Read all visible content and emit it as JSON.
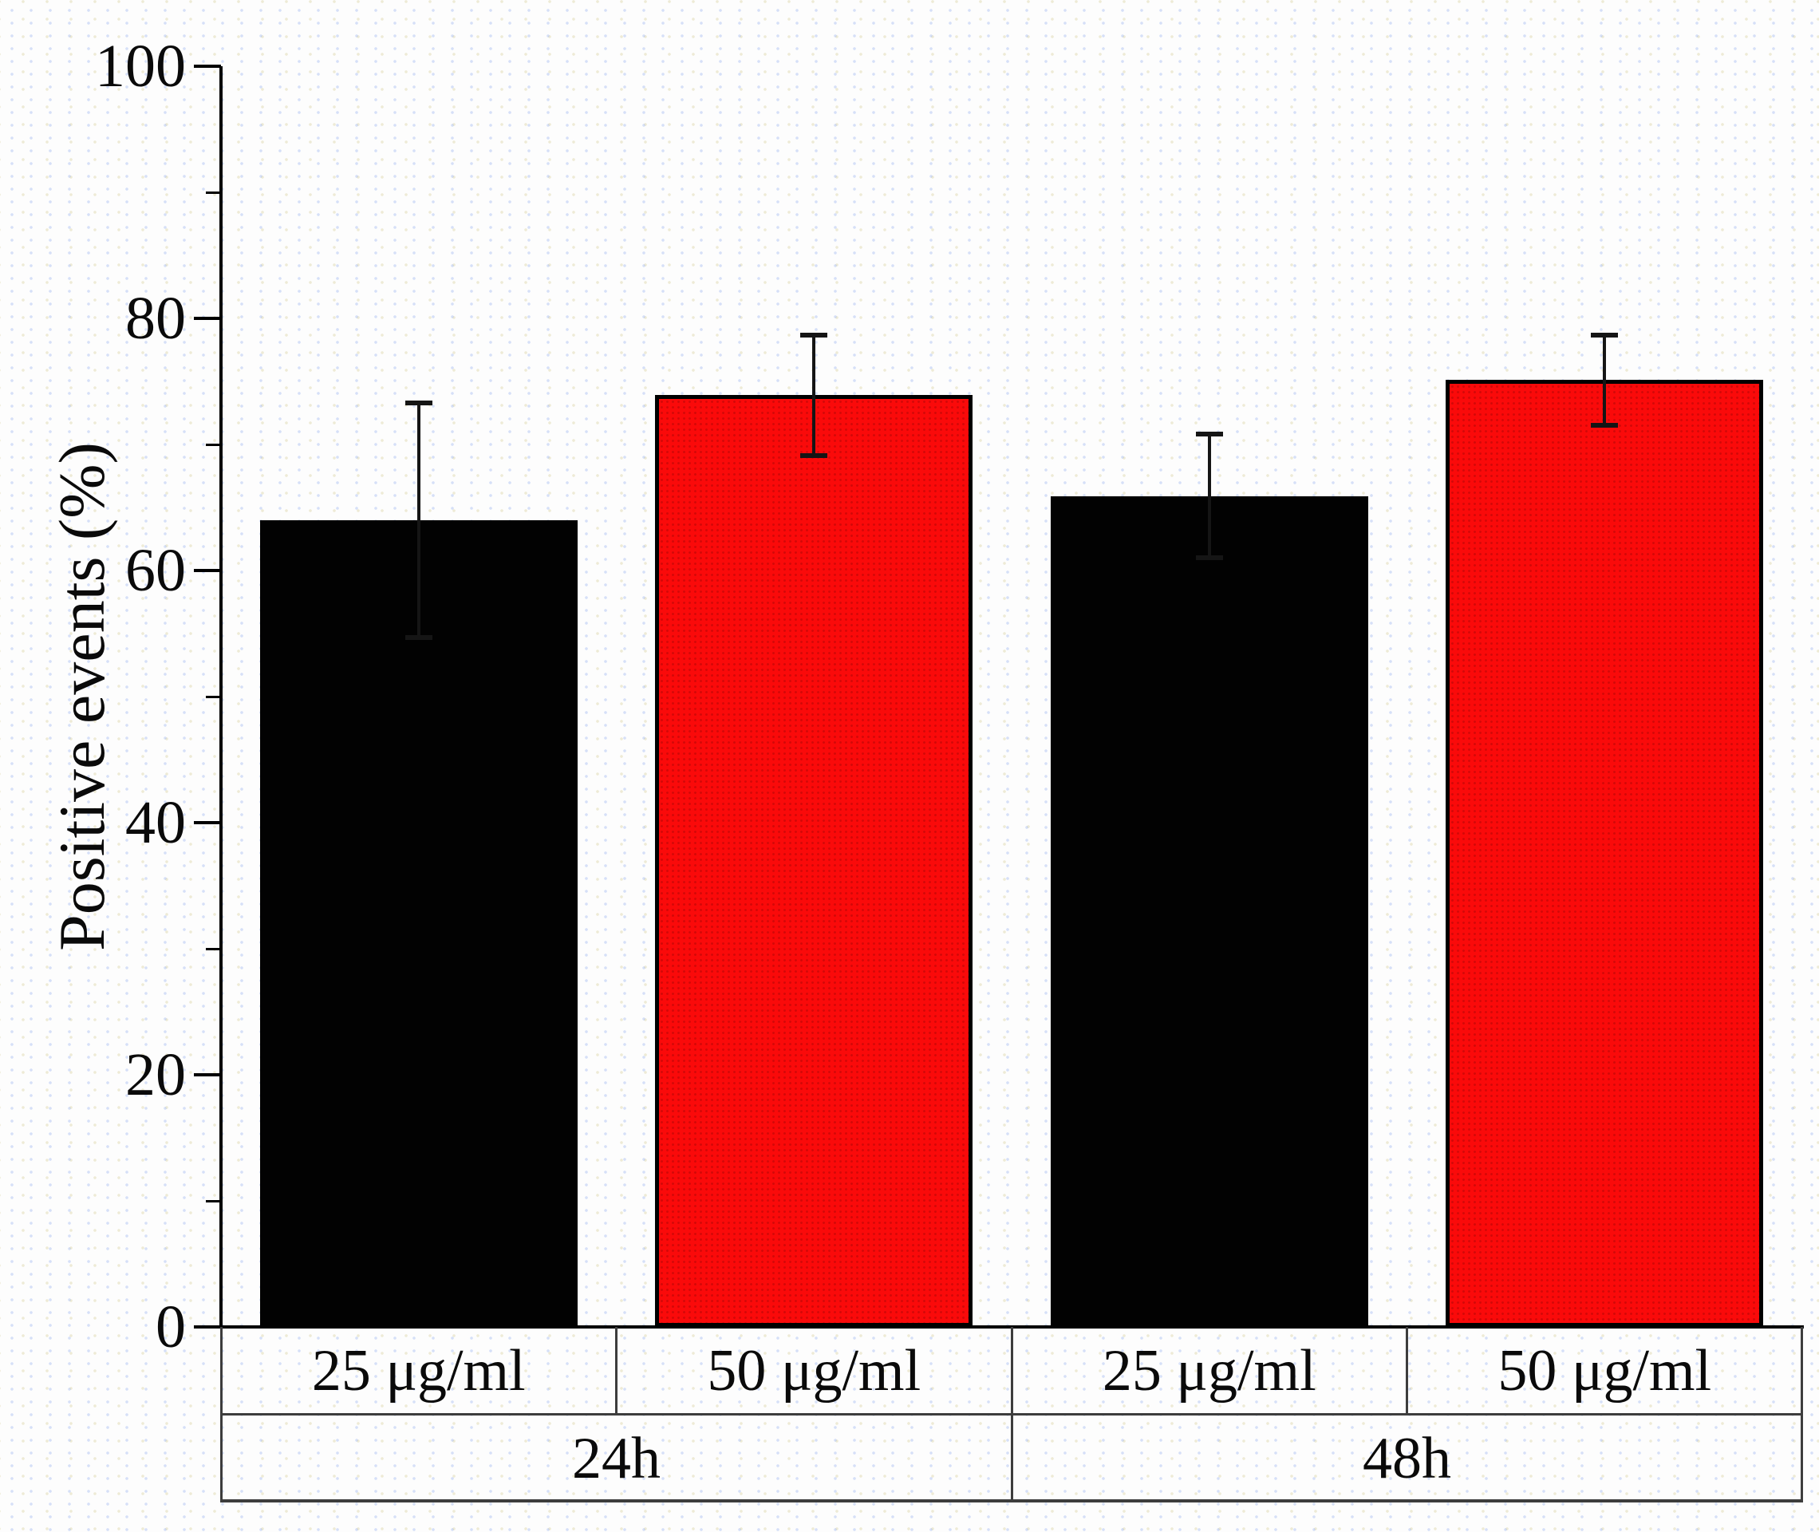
{
  "chart_data": {
    "type": "bar",
    "title": "",
    "ylabel": "Positive events (%)",
    "xlabel": "",
    "ylim": [
      0,
      100
    ],
    "ytick_interval": 20,
    "yticks": [
      "0",
      "20",
      "40",
      "60",
      "80",
      "100"
    ],
    "minor_ticks": [
      10,
      30,
      50,
      70,
      90
    ],
    "grid": false,
    "legend": null,
    "colors": {
      "black_bar": "#020202",
      "red_bar": "#fa0a0a",
      "bar_border": "#000000",
      "axis": "#000000",
      "table_border": "#3d3d3d",
      "error_bar": "#151515",
      "background": "#fdfdfd"
    },
    "groups": [
      {
        "label": "24h",
        "bars": [
          {
            "label": "25 μg/ml",
            "value": 64.0,
            "error": 9.3,
            "color_key": "black_bar"
          },
          {
            "label": "50 μg/ml",
            "value": 73.9,
            "error": 4.8,
            "color_key": "red_bar"
          }
        ]
      },
      {
        "label": "48h",
        "bars": [
          {
            "label": "25 μg/ml",
            "value": 65.9,
            "error": 4.9,
            "color_key": "black_bar"
          },
          {
            "label": "50 μg/ml",
            "value": 75.1,
            "error": 3.6,
            "color_key": "red_bar"
          }
        ]
      }
    ]
  }
}
